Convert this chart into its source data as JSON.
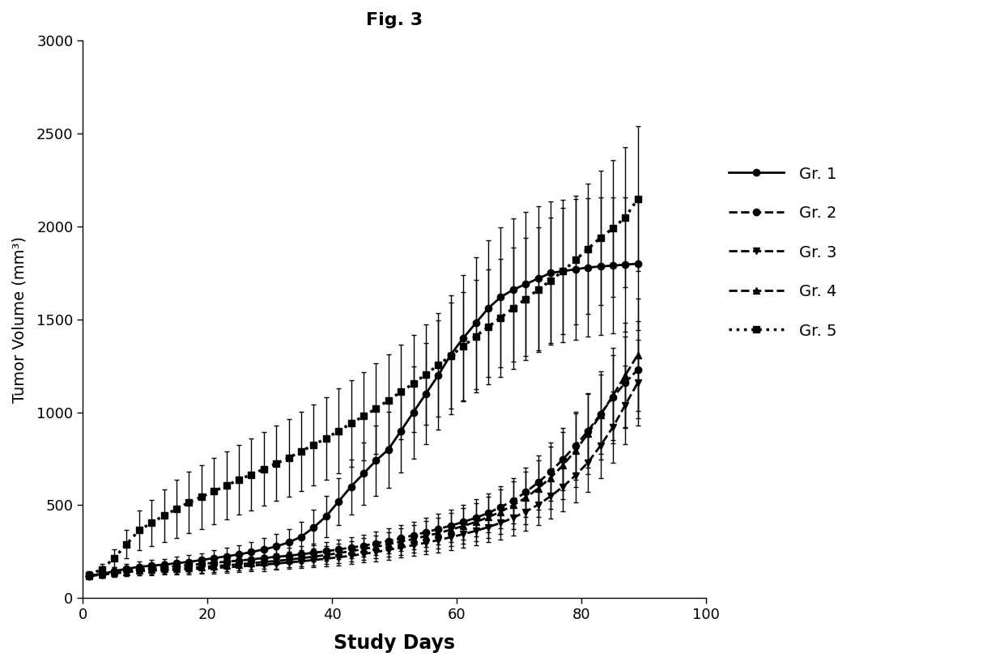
{
  "title": "Fig. 3",
  "xlabel": "Study Days",
  "ylabel": "Tumor Volume (mm³)",
  "xlim": [
    0,
    100
  ],
  "ylim": [
    0,
    3000
  ],
  "xticks": [
    0,
    20,
    40,
    60,
    80,
    100
  ],
  "yticks": [
    0,
    500,
    1000,
    1500,
    2000,
    2500,
    3000
  ],
  "background_color": "#ffffff",
  "groups": [
    {
      "label": "Gr. 1",
      "linestyle": "-",
      "marker": "o",
      "color": "#000000",
      "linewidth": 2.0,
      "markersize": 6,
      "x": [
        1,
        3,
        5,
        7,
        9,
        11,
        13,
        15,
        17,
        19,
        21,
        23,
        25,
        27,
        29,
        31,
        33,
        35,
        37,
        39,
        41,
        43,
        45,
        47,
        49,
        51,
        53,
        55,
        57,
        59,
        61,
        63,
        65,
        67,
        69,
        71,
        73,
        75,
        77,
        79,
        81,
        83,
        85,
        87,
        89
      ],
      "y": [
        120,
        130,
        145,
        158,
        168,
        175,
        180,
        188,
        195,
        205,
        215,
        225,
        235,
        248,
        262,
        278,
        300,
        330,
        380,
        440,
        520,
        600,
        670,
        740,
        800,
        900,
        1000,
        1100,
        1200,
        1310,
        1400,
        1480,
        1560,
        1620,
        1660,
        1690,
        1720,
        1750,
        1760,
        1770,
        1780,
        1785,
        1790,
        1795,
        1800
      ],
      "yerr": [
        15,
        18,
        22,
        25,
        28,
        30,
        32,
        34,
        36,
        38,
        42,
        46,
        50,
        55,
        60,
        66,
        73,
        82,
        95,
        110,
        128,
        148,
        168,
        188,
        205,
        225,
        248,
        272,
        295,
        318,
        338,
        355,
        368,
        378,
        385,
        388,
        388,
        385,
        382,
        378,
        374,
        370,
        366,
        362,
        358
      ]
    },
    {
      "label": "Gr. 2",
      "linestyle": "--",
      "marker": "o",
      "color": "#000000",
      "linewidth": 2.0,
      "markersize": 6,
      "x": [
        1,
        3,
        5,
        7,
        9,
        11,
        13,
        15,
        17,
        19,
        21,
        23,
        25,
        27,
        29,
        31,
        33,
        35,
        37,
        39,
        41,
        43,
        45,
        47,
        49,
        51,
        53,
        55,
        57,
        59,
        61,
        63,
        65,
        67,
        69,
        71,
        73,
        75,
        77,
        79,
        81,
        83,
        85,
        87,
        89
      ],
      "y": [
        120,
        128,
        138,
        148,
        155,
        162,
        168,
        172,
        178,
        184,
        190,
        196,
        202,
        208,
        216,
        222,
        228,
        236,
        244,
        252,
        262,
        272,
        282,
        295,
        308,
        322,
        338,
        355,
        372,
        390,
        410,
        432,
        458,
        490,
        525,
        570,
        622,
        680,
        748,
        820,
        900,
        990,
        1080,
        1160,
        1230
      ],
      "yerr": [
        15,
        17,
        20,
        22,
        24,
        26,
        28,
        29,
        30,
        32,
        33,
        34,
        36,
        38,
        40,
        42,
        44,
        46,
        48,
        50,
        53,
        56,
        59,
        62,
        66,
        70,
        74,
        78,
        83,
        88,
        93,
        99,
        106,
        114,
        123,
        133,
        144,
        156,
        169,
        183,
        198,
        214,
        230,
        246,
        260
      ]
    },
    {
      "label": "Gr. 3",
      "linestyle": "--",
      "marker": "v",
      "color": "#000000",
      "linewidth": 2.0,
      "markersize": 6,
      "x": [
        1,
        3,
        5,
        7,
        9,
        11,
        13,
        15,
        17,
        19,
        21,
        23,
        25,
        27,
        29,
        31,
        33,
        35,
        37,
        39,
        41,
        43,
        45,
        47,
        49,
        51,
        53,
        55,
        57,
        59,
        61,
        63,
        65,
        67,
        69,
        71,
        73,
        75,
        77,
        79,
        81,
        83,
        85,
        87,
        89
      ],
      "y": [
        120,
        126,
        133,
        140,
        145,
        148,
        150,
        152,
        155,
        158,
        162,
        166,
        170,
        175,
        180,
        186,
        192,
        198,
        205,
        212,
        220,
        228,
        238,
        248,
        260,
        272,
        285,
        298,
        312,
        328,
        344,
        362,
        382,
        405,
        432,
        465,
        502,
        548,
        600,
        660,
        730,
        820,
        920,
        1040,
        1160
      ],
      "yerr": [
        15,
        16,
        18,
        20,
        22,
        23,
        24,
        25,
        26,
        27,
        28,
        29,
        30,
        31,
        33,
        34,
        36,
        37,
        39,
        41,
        43,
        45,
        47,
        50,
        52,
        55,
        58,
        61,
        65,
        68,
        72,
        77,
        82,
        88,
        95,
        102,
        110,
        120,
        131,
        143,
        157,
        173,
        190,
        210,
        230
      ]
    },
    {
      "label": "Gr. 4",
      "linestyle": "--",
      "marker": "^",
      "color": "#000000",
      "linewidth": 2.0,
      "markersize": 6,
      "x": [
        1,
        3,
        5,
        7,
        9,
        11,
        13,
        15,
        17,
        19,
        21,
        23,
        25,
        27,
        29,
        31,
        33,
        35,
        37,
        39,
        41,
        43,
        45,
        47,
        49,
        51,
        53,
        55,
        57,
        59,
        61,
        63,
        65,
        67,
        69,
        71,
        73,
        75,
        77,
        79,
        81,
        83,
        85,
        87,
        89
      ],
      "y": [
        120,
        127,
        135,
        142,
        148,
        152,
        156,
        160,
        164,
        168,
        172,
        177,
        182,
        188,
        194,
        200,
        207,
        215,
        223,
        232,
        242,
        253,
        264,
        276,
        290,
        304,
        318,
        334,
        350,
        368,
        388,
        410,
        435,
        465,
        500,
        540,
        590,
        648,
        715,
        795,
        885,
        985,
        1090,
        1200,
        1310
      ],
      "yerr": [
        15,
        17,
        19,
        21,
        23,
        25,
        26,
        27,
        28,
        30,
        31,
        32,
        34,
        36,
        38,
        40,
        42,
        44,
        46,
        49,
        52,
        55,
        58,
        62,
        66,
        70,
        74,
        79,
        84,
        90,
        96,
        103,
        111,
        120,
        130,
        141,
        153,
        166,
        181,
        198,
        217,
        237,
        258,
        280,
        302
      ]
    },
    {
      "label": "Gr. 5",
      "linestyle": ":",
      "marker": "s",
      "color": "#000000",
      "linewidth": 2.5,
      "markersize": 6,
      "x": [
        1,
        3,
        5,
        7,
        9,
        11,
        13,
        15,
        17,
        19,
        21,
        23,
        25,
        27,
        29,
        31,
        33,
        35,
        37,
        39,
        41,
        43,
        45,
        47,
        49,
        51,
        53,
        55,
        57,
        59,
        61,
        63,
        65,
        67,
        69,
        71,
        73,
        75,
        77,
        79,
        81,
        83,
        85,
        87,
        89
      ],
      "y": [
        125,
        155,
        215,
        290,
        365,
        405,
        445,
        480,
        515,
        545,
        575,
        605,
        638,
        665,
        695,
        725,
        755,
        790,
        825,
        860,
        900,
        940,
        980,
        1020,
        1065,
        1110,
        1155,
        1205,
        1255,
        1305,
        1355,
        1410,
        1460,
        1510,
        1560,
        1610,
        1660,
        1710,
        1760,
        1820,
        1880,
        1940,
        1990,
        2050,
        2150
      ],
      "yerr": [
        18,
        28,
        48,
        75,
        105,
        125,
        142,
        155,
        165,
        172,
        178,
        183,
        188,
        193,
        198,
        203,
        208,
        213,
        218,
        223,
        228,
        233,
        238,
        243,
        248,
        255,
        262,
        270,
        278,
        286,
        294,
        302,
        310,
        318,
        325,
        330,
        334,
        337,
        340,
        345,
        352,
        360,
        368,
        378,
        390
      ]
    }
  ]
}
